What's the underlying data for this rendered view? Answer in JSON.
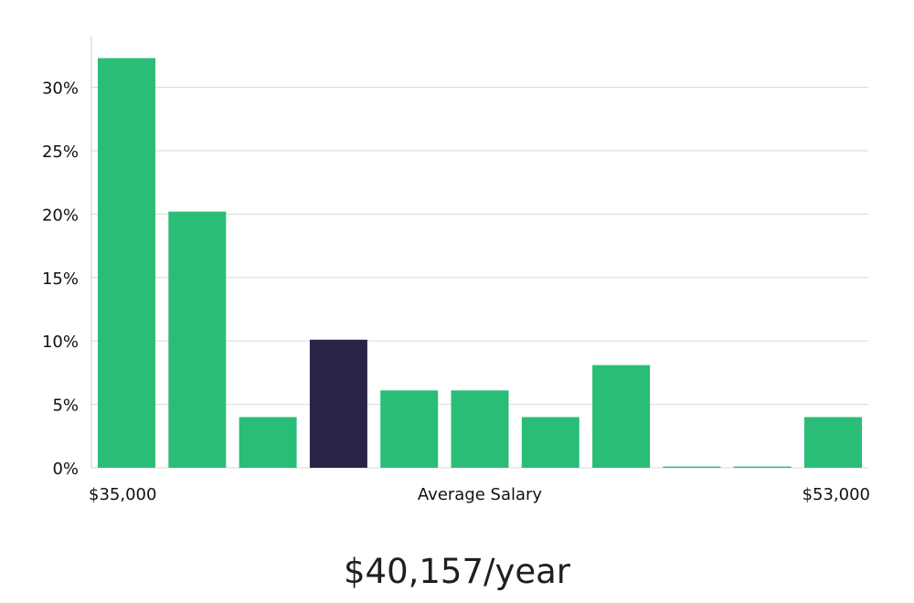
{
  "chart_data": {
    "type": "bar",
    "title": "",
    "xlabel": "Average Salary",
    "ylabel": "",
    "x_range_labels": [
      "$35,000",
      "$53,000"
    ],
    "categories": [
      "1",
      "2",
      "3",
      "4",
      "5",
      "6",
      "7",
      "8",
      "9",
      "10",
      "11"
    ],
    "values": [
      32.3,
      20.2,
      4.0,
      10.1,
      6.1,
      6.1,
      4.0,
      8.1,
      0.1,
      0.1,
      4.0
    ],
    "highlight_index": 3,
    "ylim": [
      0,
      34
    ],
    "yticks": [
      0,
      5,
      10,
      15,
      20,
      25,
      30
    ],
    "ytick_labels": [
      "0%",
      "5%",
      "10%",
      "15%",
      "20%",
      "25%",
      "30%"
    ],
    "grid": true,
    "colors": {
      "bar": "#2abd77",
      "bar_highlight": "#292546",
      "grid": "#d9d9d9",
      "axis": "#cccccc"
    }
  },
  "headline": {
    "salary_text": "$40,157/year"
  }
}
